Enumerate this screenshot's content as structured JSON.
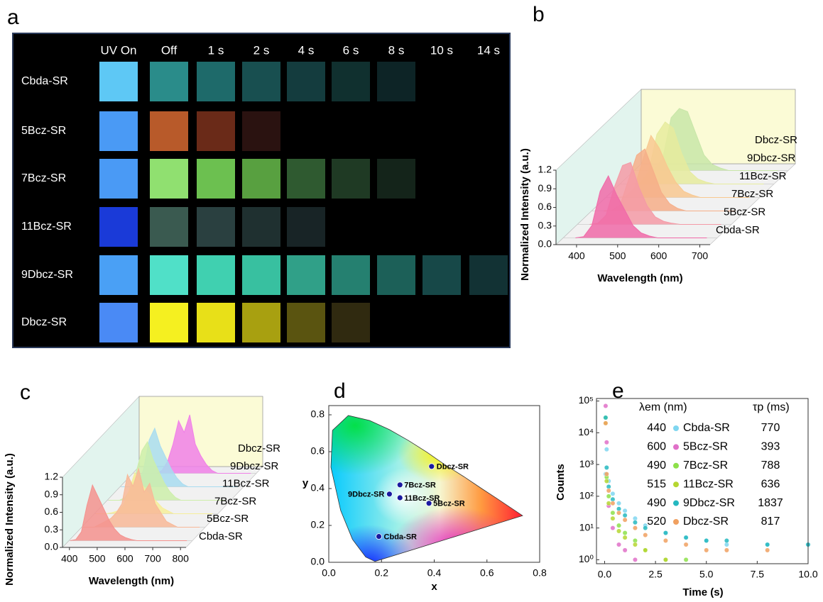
{
  "panel_a": {
    "label": "a",
    "columns": [
      "UV On",
      "Off",
      "1 s",
      "2 s",
      "4 s",
      "6 s",
      "8 s",
      "10 s",
      "14 s"
    ],
    "rows": [
      {
        "name": "Cbda-SR",
        "colors": [
          "#5ec8f5",
          "#2a8c8a",
          "#1e6a6a",
          "#184f50",
          "#143c3e",
          "#10302f",
          "#0d2426",
          null,
          null
        ]
      },
      {
        "name": "5Bcz-SR",
        "colors": [
          "#4a9af5",
          "#b85a2a",
          "#6a2a18",
          "#2a1210",
          null,
          null,
          null,
          null,
          null
        ]
      },
      {
        "name": "7Bcz-SR",
        "colors": [
          "#4a9af5",
          "#90e070",
          "#6cc050",
          "#58a040",
          "#2f5a30",
          "#1f3a24",
          "#14241a",
          null,
          null
        ]
      },
      {
        "name": "11Bcz-SR",
        "colors": [
          "#1a3ad8",
          "#3a5a50",
          "#2a4040",
          "#1f3030",
          "#182426",
          null,
          null,
          null,
          null
        ]
      },
      {
        "name": "9Dbcz-SR",
        "colors": [
          "#4aa0f5",
          "#50e0c8",
          "#40d0b0",
          "#38c0a0",
          "#30a088",
          "#258070",
          "#1c6058",
          "#174848",
          "#123234"
        ]
      },
      {
        "name": "Dbcz-SR",
        "colors": [
          "#4a8af5",
          "#f5f020",
          "#e8e018",
          "#a8a010",
          "#5a5410",
          "#302a10",
          null,
          null,
          null
        ]
      }
    ]
  },
  "chart_data": [
    {
      "type": "waterfall",
      "label": "b",
      "xlabel": "Wavelength (nm)",
      "ylabel": "Normalized Intensity (a.u.)",
      "x": [
        380,
        400,
        420,
        440,
        460,
        480,
        500,
        520,
        540,
        560,
        580,
        600,
        620,
        640,
        660,
        680,
        700
      ],
      "xlim": [
        350,
        725
      ],
      "xticks": [
        400,
        500,
        600,
        700
      ],
      "ylim": [
        0,
        1.2
      ],
      "yticks": [
        {
          "value": 0,
          "label": "0.0"
        },
        0.3,
        0.6,
        0.9,
        1.2
      ],
      "series": [
        {
          "name": "Cbda-SR",
          "color": "#f06aa8",
          "values": [
            0,
            0.02,
            0.2,
            0.75,
            1.0,
            0.7,
            0.45,
            0.2,
            0.08,
            0.03,
            0,
            0,
            0,
            0,
            0,
            0,
            0
          ]
        },
        {
          "name": "5Bcz-SR",
          "color": "#f49aa6",
          "values": [
            0,
            0.02,
            0.15,
            0.6,
            0.95,
            1.0,
            0.6,
            0.3,
            0.12,
            0.05,
            0.02,
            0,
            0,
            0,
            0,
            0,
            0
          ]
        },
        {
          "name": "7Bcz-SR",
          "color": "#f6ae88",
          "values": [
            0,
            0.01,
            0.1,
            0.5,
            0.9,
            1.0,
            0.65,
            0.3,
            0.12,
            0.04,
            0,
            0,
            0,
            0,
            0,
            0,
            0
          ]
        },
        {
          "name": "11Bcz-SR",
          "color": "#f8c890",
          "values": [
            0,
            0.02,
            0.15,
            0.6,
            1.0,
            0.8,
            0.5,
            0.25,
            0.1,
            0.04,
            0,
            0,
            0,
            0,
            0,
            0,
            0
          ]
        },
        {
          "name": "9Dbcz-SR",
          "color": "#e6eb9e",
          "values": [
            0,
            0.02,
            0.2,
            0.8,
            1.0,
            0.9,
            0.5,
            0.2,
            0.08,
            0.03,
            0,
            0,
            0,
            0,
            0,
            0,
            0
          ]
        },
        {
          "name": "Dbcz-SR",
          "color": "#c8e6a8",
          "values": [
            0,
            0.02,
            0.2,
            0.85,
            1.0,
            0.95,
            0.6,
            0.25,
            0.1,
            0.04,
            0,
            0,
            0,
            0,
            0,
            0,
            0
          ]
        }
      ]
    },
    {
      "type": "waterfall",
      "label": "c",
      "xlabel": "Wavelength (nm)",
      "ylabel": "Normalized Intensity (a.u.)",
      "x": [
        380,
        400,
        420,
        440,
        460,
        480,
        500,
        520,
        540,
        560,
        580,
        600,
        620,
        640,
        660,
        680,
        700,
        720,
        740,
        760,
        780,
        800
      ],
      "xlim": [
        375,
        820
      ],
      "xticks": [
        400,
        500,
        600,
        700,
        800
      ],
      "ylim": [
        0,
        1.2
      ],
      "yticks": [
        {
          "value": 0,
          "label": "0.0"
        },
        0.3,
        0.6,
        0.9,
        1.2
      ],
      "series": [
        {
          "name": "Cbda-SR",
          "color": "#f4928e",
          "values": [
            0,
            0.02,
            0.15,
            0.6,
            0.95,
            0.75,
            0.55,
            0.35,
            0.2,
            0.1,
            0.05,
            0.02,
            0,
            0,
            0,
            0,
            0,
            0,
            0,
            0,
            0,
            0
          ]
        },
        {
          "name": "5Bcz-SR",
          "color": "#f8b898",
          "values": [
            0,
            0,
            0,
            0.05,
            0.1,
            0.15,
            0.25,
            0.4,
            0.9,
            0.7,
            1.0,
            0.6,
            0.75,
            0.4,
            0.25,
            0.1,
            0.05,
            0,
            0,
            0,
            0,
            0
          ]
        },
        {
          "name": "7Bcz-SR",
          "color": "#f6ee9a",
          "values": [
            0,
            0,
            0,
            0.02,
            0.05,
            0.15,
            0.4,
            0.7,
            0.55,
            0.4,
            0.3,
            0.2,
            0.1,
            0.05,
            0,
            0,
            0,
            0,
            0,
            0,
            0,
            0
          ]
        },
        {
          "name": "11Bcz-SR",
          "color": "#cdeeaa",
          "values": [
            0,
            0,
            0,
            0.05,
            0.2,
            0.5,
            0.85,
            1.0,
            0.7,
            0.5,
            0.3,
            0.15,
            0.05,
            0,
            0,
            0,
            0,
            0,
            0,
            0,
            0,
            0
          ]
        },
        {
          "name": "9Dbcz-SR",
          "color": "#a8dcf0",
          "values": [
            0,
            0,
            0,
            0.05,
            0.3,
            0.8,
            1.0,
            0.7,
            0.5,
            0.3,
            0.15,
            0.05,
            0,
            0,
            0,
            0,
            0,
            0,
            0,
            0,
            0,
            0
          ]
        },
        {
          "name": "Dbcz-SR",
          "color": "#f080e8",
          "values": [
            0,
            0,
            0,
            0,
            0,
            0.05,
            0.2,
            0.5,
            0.9,
            0.7,
            1.0,
            0.5,
            0.3,
            0.15,
            0.05,
            0,
            0,
            0,
            0,
            0,
            0,
            0
          ]
        }
      ]
    },
    {
      "type": "scatter",
      "label": "d",
      "xlabel": "x",
      "ylabel": "y",
      "xlim": [
        0,
        0.8
      ],
      "xticks": [
        {
          "value": 0,
          "label": "0.0"
        },
        0.2,
        0.4,
        0.6,
        0.8
      ],
      "ylim": [
        0,
        0.85
      ],
      "yticks": [
        {
          "value": 0,
          "label": "0.0"
        },
        0.2,
        0.4,
        0.6,
        0.8
      ],
      "color": "#1a1aa0",
      "point_labels": [
        "Dbcz-SR",
        "7Bcz-SR",
        "9Dbcz-SR",
        "11Bcz-SR",
        "5Bcz-SR",
        "Cbda-SR"
      ],
      "x": [
        0.39,
        0.27,
        0.23,
        0.27,
        0.38,
        0.19
      ],
      "values": [
        0.52,
        0.42,
        0.37,
        0.35,
        0.32,
        0.14
      ]
    },
    {
      "type": "decay",
      "label": "e",
      "xlabel": "Time (s)",
      "ylabel": "Counts",
      "emission_header": "λem (nm)",
      "lifetime_header": "τp (ms)",
      "log_y": true,
      "xlim": [
        -0.4,
        10
      ],
      "xticks": [
        {
          "value": 0,
          "label": "0.0"
        },
        2.5,
        {
          "value": 5,
          "label": "5.0"
        },
        7.5,
        {
          "value": 10,
          "label": "10.0"
        }
      ],
      "ylim": [
        0.75,
        120000
      ],
      "yticks": [
        {
          "value": 1,
          "label": "10⁰"
        },
        {
          "value": 10,
          "label": "10¹"
        },
        {
          "value": 100,
          "label": "10²"
        },
        {
          "value": 1000,
          "label": "10³"
        },
        {
          "value": 10000,
          "label": "10⁴"
        },
        {
          "value": 100000,
          "label": "10⁵"
        }
      ],
      "x": [
        0.05,
        0.1,
        0.2,
        0.4,
        0.7,
        1,
        1.5,
        2,
        3,
        4,
        5,
        6,
        8,
        10
      ],
      "series": [
        {
          "name": "Cbda-SR",
          "color": "#7fd6f0",
          "emission_nm": 440,
          "lifetime_ms": 770,
          "values": [
            500,
            3000,
            300,
            120,
            60,
            35,
            20,
            12,
            7,
            5,
            4,
            3,
            3,
            3
          ]
        },
        {
          "name": "5Bcz-SR",
          "color": "#e070c8",
          "emission_nm": 600,
          "lifetime_ms": 393,
          "values": [
            70000,
            5000,
            50,
            10,
            3,
            2,
            1,
            null,
            null,
            null,
            null,
            null,
            null,
            null
          ]
        },
        {
          "name": "7Bcz-SR",
          "color": "#8de04a",
          "emission_nm": 490,
          "lifetime_ms": 788,
          "values": [
            30000,
            400,
            100,
            30,
            12,
            7,
            4,
            2,
            1,
            1,
            null,
            null,
            null,
            null
          ]
        },
        {
          "name": "11Bcz-SR",
          "color": "#b5d630",
          "emission_nm": 515,
          "lifetime_ms": 636,
          "values": [
            20000,
            300,
            60,
            20,
            8,
            5,
            3,
            2,
            1,
            null,
            null,
            null,
            null,
            null
          ]
        },
        {
          "name": "9Dbcz-SR",
          "color": "#25b8c0",
          "emission_nm": 490,
          "lifetime_ms": 1837,
          "values": [
            30000,
            800,
            200,
            80,
            40,
            25,
            15,
            10,
            7,
            5,
            4,
            4,
            3,
            3
          ]
        },
        {
          "name": "Dbcz-SR",
          "color": "#f0a060",
          "emission_nm": 520,
          "lifetime_ms": 817,
          "values": [
            20000,
            500,
            150,
            60,
            30,
            18,
            10,
            6,
            4,
            3,
            2,
            2,
            2,
            null
          ]
        }
      ]
    }
  ]
}
